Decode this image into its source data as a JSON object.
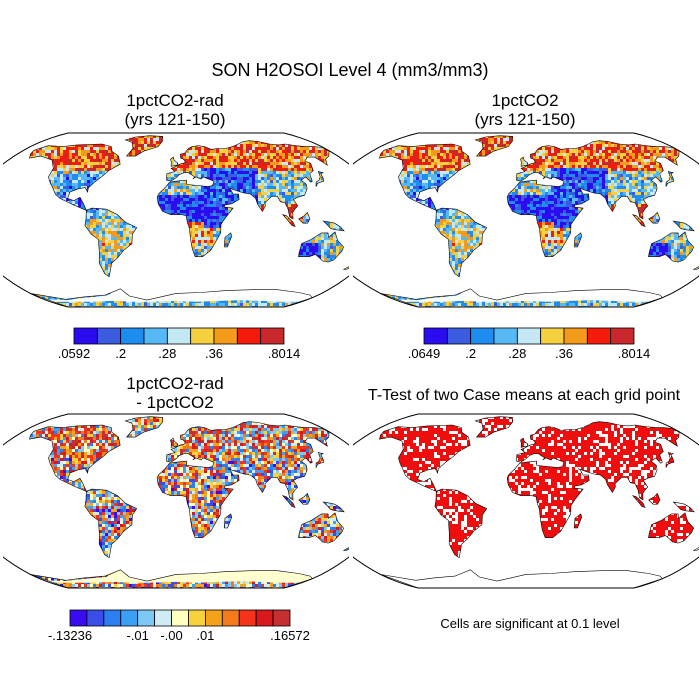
{
  "main_title": "SON H2OSOI Level 4 (mm3/mm3)",
  "panels": [
    {
      "title1": "1pctCO2-rad",
      "title2": "(yrs 121-150)"
    },
    {
      "title1": "1pctCO2",
      "title2": "(yrs 121-150)"
    },
    {
      "title1": "1pctCO2-rad",
      "title2": "- 1pctCO2"
    },
    {
      "title1": "T-Test of two Case means at each grid point",
      "title2": ""
    }
  ],
  "colorbars": [
    {
      "colors": [
        "#2b0bf0",
        "#3b5be0",
        "#1f8cf0",
        "#57b8f5",
        "#c5e8f5",
        "#f5d040",
        "#f59b1b",
        "#f51b0b",
        "#c8282c"
      ],
      "labels": [
        ".0592",
        ".2",
        ".28",
        ".36",
        ".8014"
      ]
    },
    {
      "colors": [
        "#2b0bf0",
        "#3b5be0",
        "#1f8cf0",
        "#57b8f5",
        "#c5e8f5",
        "#f5d040",
        "#f59b1b",
        "#f51b0b",
        "#c8282c"
      ],
      "labels": [
        ".0649",
        ".2",
        ".28",
        ".36",
        ".8014"
      ]
    },
    {
      "colors": [
        "#3a0bf0",
        "#3a4de8",
        "#2b7ff0",
        "#3ba0f5",
        "#7dc8f5",
        "#d0ecf5",
        "#ffffc0",
        "#f7d23b",
        "#f5a21b",
        "#f57a1b",
        "#f5321b",
        "#d8181b",
        "#c43030"
      ],
      "labels": [
        "-.13236",
        "-.01",
        "-.00",
        ".01",
        ".16572"
      ]
    }
  ],
  "note": "Cells are significant at 0.1 level",
  "colors": {
    "ocean": "#ffffff",
    "significant": "#f00d0d",
    "outline": "#000000"
  }
}
